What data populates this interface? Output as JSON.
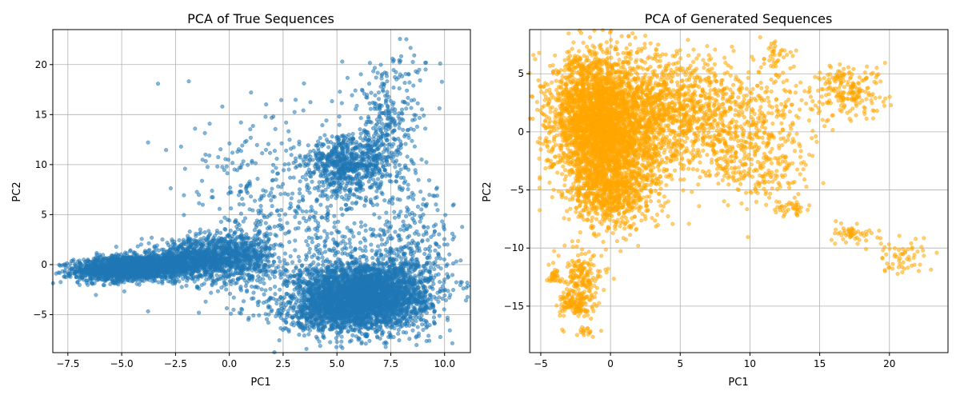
{
  "chart_data": [
    {
      "type": "scatter",
      "title": "PCA of True Sequences",
      "xlabel": "PC1",
      "ylabel": "PC2",
      "xlim": [
        -8.2,
        11.2
      ],
      "ylim": [
        -8.8,
        23.5
      ],
      "xticks": [
        -7.5,
        -5.0,
        -2.5,
        0.0,
        2.5,
        5.0,
        7.5,
        10.0
      ],
      "xtick_labels": [
        "−7.5",
        "−5.0",
        "−2.5",
        "0.0",
        "2.5",
        "5.0",
        "7.5",
        "10.0"
      ],
      "yticks": [
        -5,
        0,
        5,
        10,
        15,
        20
      ],
      "ytick_labels": [
        "−5",
        "0",
        "5",
        "10",
        "15",
        "20"
      ],
      "grid": true,
      "color": "#1f77b4",
      "alpha": 0.55,
      "clusters": [
        {
          "cx": -4.5,
          "cy": -0.3,
          "sx": 1.3,
          "sy": 0.6,
          "n": 2200,
          "rot": 0.12
        },
        {
          "cx": -1.5,
          "cy": 0.5,
          "sx": 1.2,
          "sy": 1.0,
          "n": 900,
          "rot": 0.1
        },
        {
          "cx": 0.5,
          "cy": 0.8,
          "sx": 0.8,
          "sy": 1.3,
          "n": 500,
          "rot": 0
        },
        {
          "cx": 6.3,
          "cy": -3.0,
          "sx": 1.5,
          "sy": 1.7,
          "n": 3200,
          "rot": 0
        },
        {
          "cx": 4.8,
          "cy": -4.5,
          "sx": 1.3,
          "sy": 1.2,
          "n": 600,
          "rot": 0
        },
        {
          "cx": 5.5,
          "cy": 10.0,
          "sx": 1.0,
          "sy": 1.4,
          "n": 650,
          "rot": 0
        },
        {
          "cx": 7.3,
          "cy": 13.5,
          "sx": 0.8,
          "sy": 2.8,
          "n": 300,
          "rot": 0
        },
        {
          "cx": 3.5,
          "cy": 4.0,
          "sx": 2.5,
          "sy": 4.5,
          "n": 600,
          "rot": 0
        },
        {
          "cx": 8.5,
          "cy": 1.0,
          "sx": 1.0,
          "sy": 3.5,
          "n": 300,
          "rot": 0
        },
        {
          "cx": 1.5,
          "cy": 11.0,
          "sx": 2.0,
          "sy": 3.0,
          "n": 50,
          "rot": 0
        },
        {
          "cx": 8.3,
          "cy": 20.0,
          "sx": 0.7,
          "sy": 1.5,
          "n": 30,
          "rot": 0
        }
      ]
    },
    {
      "type": "scatter",
      "title": "PCA of Generated Sequences",
      "xlabel": "PC1",
      "ylabel": "PC2",
      "xlim": [
        -5.8,
        24.2
      ],
      "ylim": [
        -19.0,
        8.8
      ],
      "xticks": [
        -5,
        0,
        5,
        10,
        15,
        20
      ],
      "xtick_labels": [
        "−5",
        "0",
        "5",
        "10",
        "15",
        "20"
      ],
      "yticks": [
        -15,
        -10,
        -5,
        0,
        5
      ],
      "ytick_labels": [
        "−15",
        "−10",
        "−5",
        "0",
        "5"
      ],
      "grid": true,
      "color": "#ffa500",
      "alpha": 0.55,
      "clusters": [
        {
          "cx": -1.0,
          "cy": 1.0,
          "sx": 1.6,
          "sy": 2.8,
          "n": 2600,
          "rot": 0
        },
        {
          "cx": 1.5,
          "cy": 0.0,
          "sx": 2.0,
          "sy": 3.0,
          "n": 1200,
          "rot": 0
        },
        {
          "cx": 0.0,
          "cy": -5.0,
          "sx": 1.5,
          "sy": 1.6,
          "n": 700,
          "rot": 0
        },
        {
          "cx": 5.0,
          "cy": 2.5,
          "sx": 2.0,
          "sy": 2.2,
          "n": 500,
          "rot": 0
        },
        {
          "cx": 8.0,
          "cy": 0.0,
          "sx": 1.8,
          "sy": 2.5,
          "n": 400,
          "rot": 0
        },
        {
          "cx": 12.0,
          "cy": 2.5,
          "sx": 1.8,
          "sy": 2.0,
          "n": 150,
          "rot": 0
        },
        {
          "cx": 17.0,
          "cy": 3.5,
          "sx": 1.3,
          "sy": 1.2,
          "n": 200,
          "rot": 0
        },
        {
          "cx": 11.5,
          "cy": -3.0,
          "sx": 1.5,
          "sy": 1.5,
          "n": 150,
          "rot": 0
        },
        {
          "cx": 13.0,
          "cy": -6.5,
          "sx": 0.6,
          "sy": 0.3,
          "n": 40,
          "rot": 0
        },
        {
          "cx": 17.5,
          "cy": -8.8,
          "sx": 0.8,
          "sy": 0.4,
          "n": 50,
          "rot": 0
        },
        {
          "cx": 21.0,
          "cy": -10.8,
          "sx": 1.1,
          "sy": 0.8,
          "n": 60,
          "rot": 0
        },
        {
          "cx": -2.0,
          "cy": -12.5,
          "sx": 0.8,
          "sy": 1.2,
          "n": 180,
          "rot": 0
        },
        {
          "cx": -2.5,
          "cy": -14.8,
          "sx": 0.6,
          "sy": 0.5,
          "n": 120,
          "rot": 0
        },
        {
          "cx": -2.0,
          "cy": -17.3,
          "sx": 0.6,
          "sy": 0.2,
          "n": 20,
          "rot": 0
        },
        {
          "cx": -4.0,
          "cy": -12.5,
          "sx": 0.3,
          "sy": 0.3,
          "n": 30,
          "rot": 0
        },
        {
          "cx": 11.8,
          "cy": 6.8,
          "sx": 0.5,
          "sy": 0.5,
          "n": 30,
          "rot": 0
        },
        {
          "cx": -2.5,
          "cy": 5.8,
          "sx": 0.4,
          "sy": 0.5,
          "n": 40,
          "rot": 0
        }
      ]
    }
  ]
}
